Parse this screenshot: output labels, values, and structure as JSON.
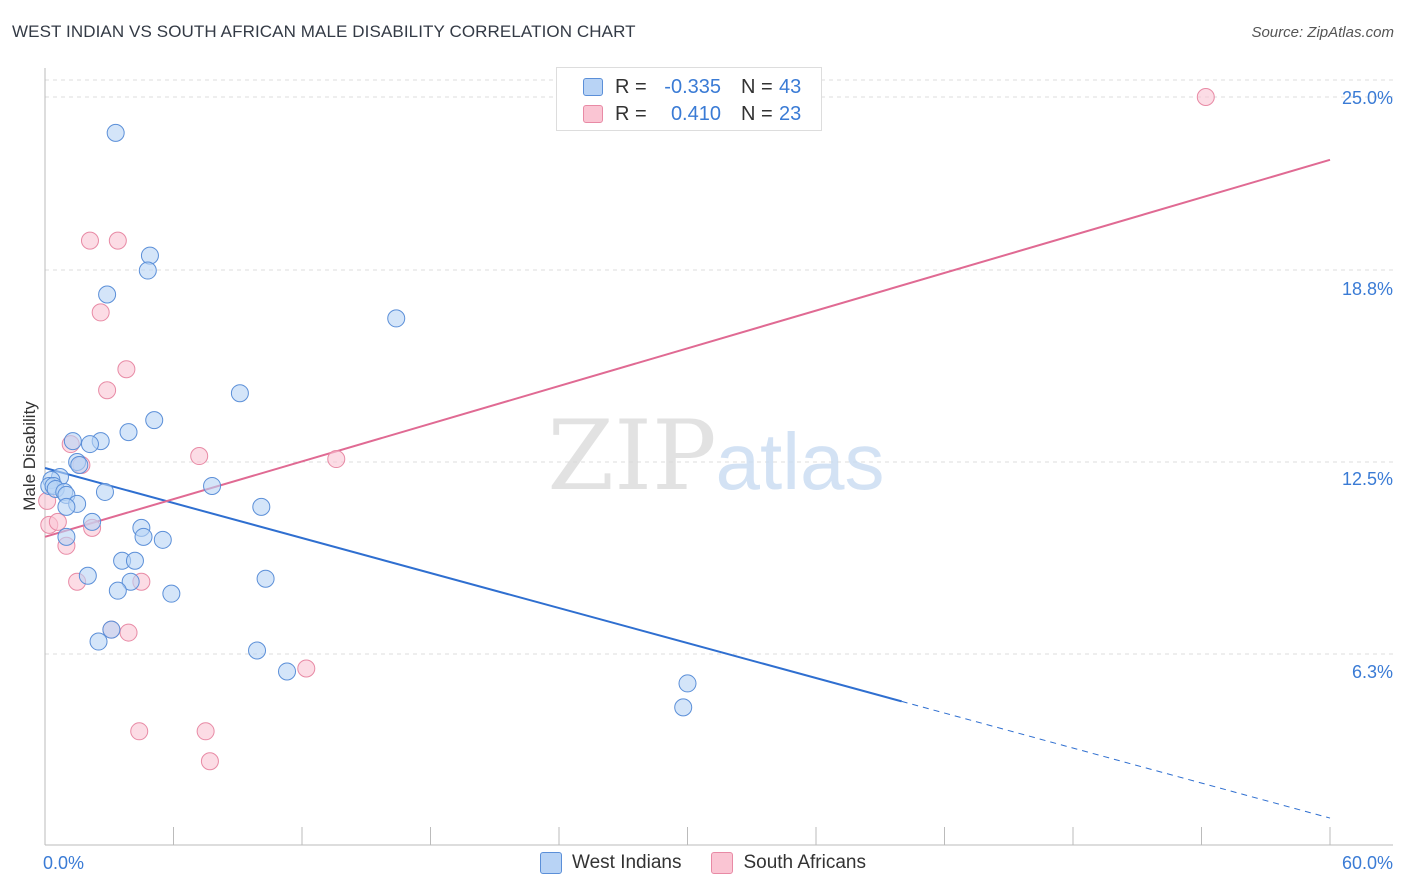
{
  "header": {
    "title": "WEST INDIAN VS SOUTH AFRICAN MALE DISABILITY CORRELATION CHART",
    "source": "Source: ZipAtlas.com"
  },
  "watermark": {
    "zip": "ZIP",
    "atlas": "atlas"
  },
  "colors": {
    "west_indian_fill": "#b8d3f5",
    "west_indian_stroke": "#5b8fd8",
    "west_indian_line": "#2f6fd0",
    "south_african_fill": "#fac5d3",
    "south_african_stroke": "#e88aa5",
    "south_african_line": "#e06a93",
    "grid": "#dcdcdc",
    "tick_label": "#3a7bd5"
  },
  "legend_top": [
    {
      "series": "West Indians",
      "r_label": "R =",
      "r_value": "-0.335",
      "n_label": "N =",
      "n_value": "43"
    },
    {
      "series": "South Africans",
      "r_label": "R =",
      "r_value": "0.410",
      "n_label": "N =",
      "n_value": "23"
    }
  ],
  "chart_data": {
    "type": "scatter",
    "title": "WEST INDIAN VS SOUTH AFRICAN MALE DISABILITY CORRELATION CHART",
    "xlabel": "",
    "ylabel": "Male Disability",
    "xlim": [
      0,
      60
    ],
    "ylim": [
      0,
      25.0
    ],
    "x_tick_labels": [
      "0.0%",
      "60.0%"
    ],
    "y_ticks": [
      6.3,
      12.5,
      18.8,
      25.0
    ],
    "y_tick_labels": [
      "6.3%",
      "12.5%",
      "18.8%",
      "25.0%"
    ],
    "legend_position": "bottom",
    "series": [
      {
        "name": "West Indians",
        "r": -0.335,
        "n": 43,
        "trend": {
          "x1": 0,
          "y1": 12.6,
          "x2": 40,
          "y2": 4.8,
          "dash_to_x": 60,
          "dash_to_y": 0.9
        },
        "points": [
          [
            3.3,
            23.8
          ],
          [
            4.9,
            19.7
          ],
          [
            4.8,
            19.2
          ],
          [
            2.9,
            18.4
          ],
          [
            16.4,
            17.6
          ],
          [
            9.1,
            15.1
          ],
          [
            5.1,
            14.2
          ],
          [
            3.9,
            13.8
          ],
          [
            1.3,
            13.5
          ],
          [
            2.6,
            13.5
          ],
          [
            2.1,
            13.4
          ],
          [
            1.5,
            12.8
          ],
          [
            1.6,
            12.7
          ],
          [
            0.7,
            12.3
          ],
          [
            0.3,
            12.2
          ],
          [
            0.2,
            12.0
          ],
          [
            0.4,
            12.0
          ],
          [
            0.5,
            11.9
          ],
          [
            0.9,
            11.8
          ],
          [
            7.8,
            12.0
          ],
          [
            2.8,
            11.8
          ],
          [
            1.0,
            11.7
          ],
          [
            1.5,
            11.4
          ],
          [
            1.0,
            11.3
          ],
          [
            10.1,
            11.3
          ],
          [
            2.2,
            10.8
          ],
          [
            4.5,
            10.6
          ],
          [
            4.6,
            10.3
          ],
          [
            5.5,
            10.2
          ],
          [
            1.0,
            10.3
          ],
          [
            3.6,
            9.5
          ],
          [
            4.2,
            9.5
          ],
          [
            10.3,
            8.9
          ],
          [
            2.0,
            9.0
          ],
          [
            4.0,
            8.8
          ],
          [
            3.4,
            8.5
          ],
          [
            5.9,
            8.4
          ],
          [
            3.1,
            7.2
          ],
          [
            2.5,
            6.8
          ],
          [
            9.9,
            6.5
          ],
          [
            11.3,
            5.8
          ],
          [
            30.0,
            5.4
          ],
          [
            29.8,
            4.6
          ]
        ]
      },
      {
        "name": "South Africans",
        "r": 0.41,
        "n": 23,
        "trend": {
          "x1": 0,
          "y1": 10.3,
          "x2": 60,
          "y2": 22.9
        },
        "points": [
          [
            54.2,
            25.0
          ],
          [
            2.1,
            20.2
          ],
          [
            3.4,
            20.2
          ],
          [
            2.6,
            17.8
          ],
          [
            3.8,
            15.9
          ],
          [
            2.9,
            15.2
          ],
          [
            1.2,
            13.4
          ],
          [
            1.7,
            12.7
          ],
          [
            7.2,
            13.0
          ],
          [
            13.6,
            12.9
          ],
          [
            0.1,
            11.5
          ],
          [
            0.2,
            10.7
          ],
          [
            0.6,
            10.8
          ],
          [
            2.2,
            10.6
          ],
          [
            1.0,
            10.0
          ],
          [
            1.5,
            8.8
          ],
          [
            4.5,
            8.8
          ],
          [
            3.1,
            7.2
          ],
          [
            3.9,
            7.1
          ],
          [
            12.2,
            5.9
          ],
          [
            4.4,
            3.8
          ],
          [
            7.5,
            3.8
          ],
          [
            7.7,
            2.8
          ]
        ]
      }
    ]
  }
}
